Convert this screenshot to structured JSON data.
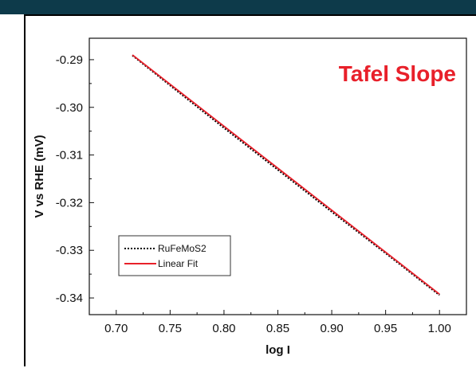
{
  "colors": {
    "top_band": "#0d3a4a",
    "title": "#e8202a",
    "fit_line": "#e8202a",
    "data_line": "#000000"
  },
  "chart_data": {
    "type": "line",
    "title": "Tafel Slope",
    "xlabel": "log I",
    "ylabel": "V vs RHE (mV)",
    "xlim": [
      0.675,
      1.025
    ],
    "ylim": [
      -0.3435,
      -0.2855
    ],
    "x_ticks": [
      0.7,
      0.75,
      0.8,
      0.85,
      0.9,
      0.95,
      1.0
    ],
    "x_tick_labels": [
      "0.70",
      "0.75",
      "0.80",
      "0.85",
      "0.90",
      "0.95",
      "1.00"
    ],
    "y_ticks": [
      -0.29,
      -0.3,
      -0.31,
      -0.32,
      -0.33,
      -0.34
    ],
    "y_tick_labels": [
      "-0.29",
      "-0.30",
      "-0.31",
      "-0.32",
      "-0.33",
      "-0.34"
    ],
    "grid": false,
    "legend_position": "lower-left",
    "series": [
      {
        "name": "RuFeMoS2",
        "style": "dotted",
        "color": "#000000",
        "x": [
          0.715,
          0.75,
          0.8,
          0.85,
          0.9,
          0.95,
          1.0
        ],
        "y": [
          -0.2891,
          -0.2954,
          -0.3043,
          -0.3131,
          -0.3219,
          -0.3306,
          -0.3394
        ]
      },
      {
        "name": "Linear Fit",
        "style": "solid",
        "color": "#e8202a",
        "x": [
          0.715,
          1.0
        ],
        "y": [
          -0.289,
          -0.3392
        ]
      }
    ]
  }
}
